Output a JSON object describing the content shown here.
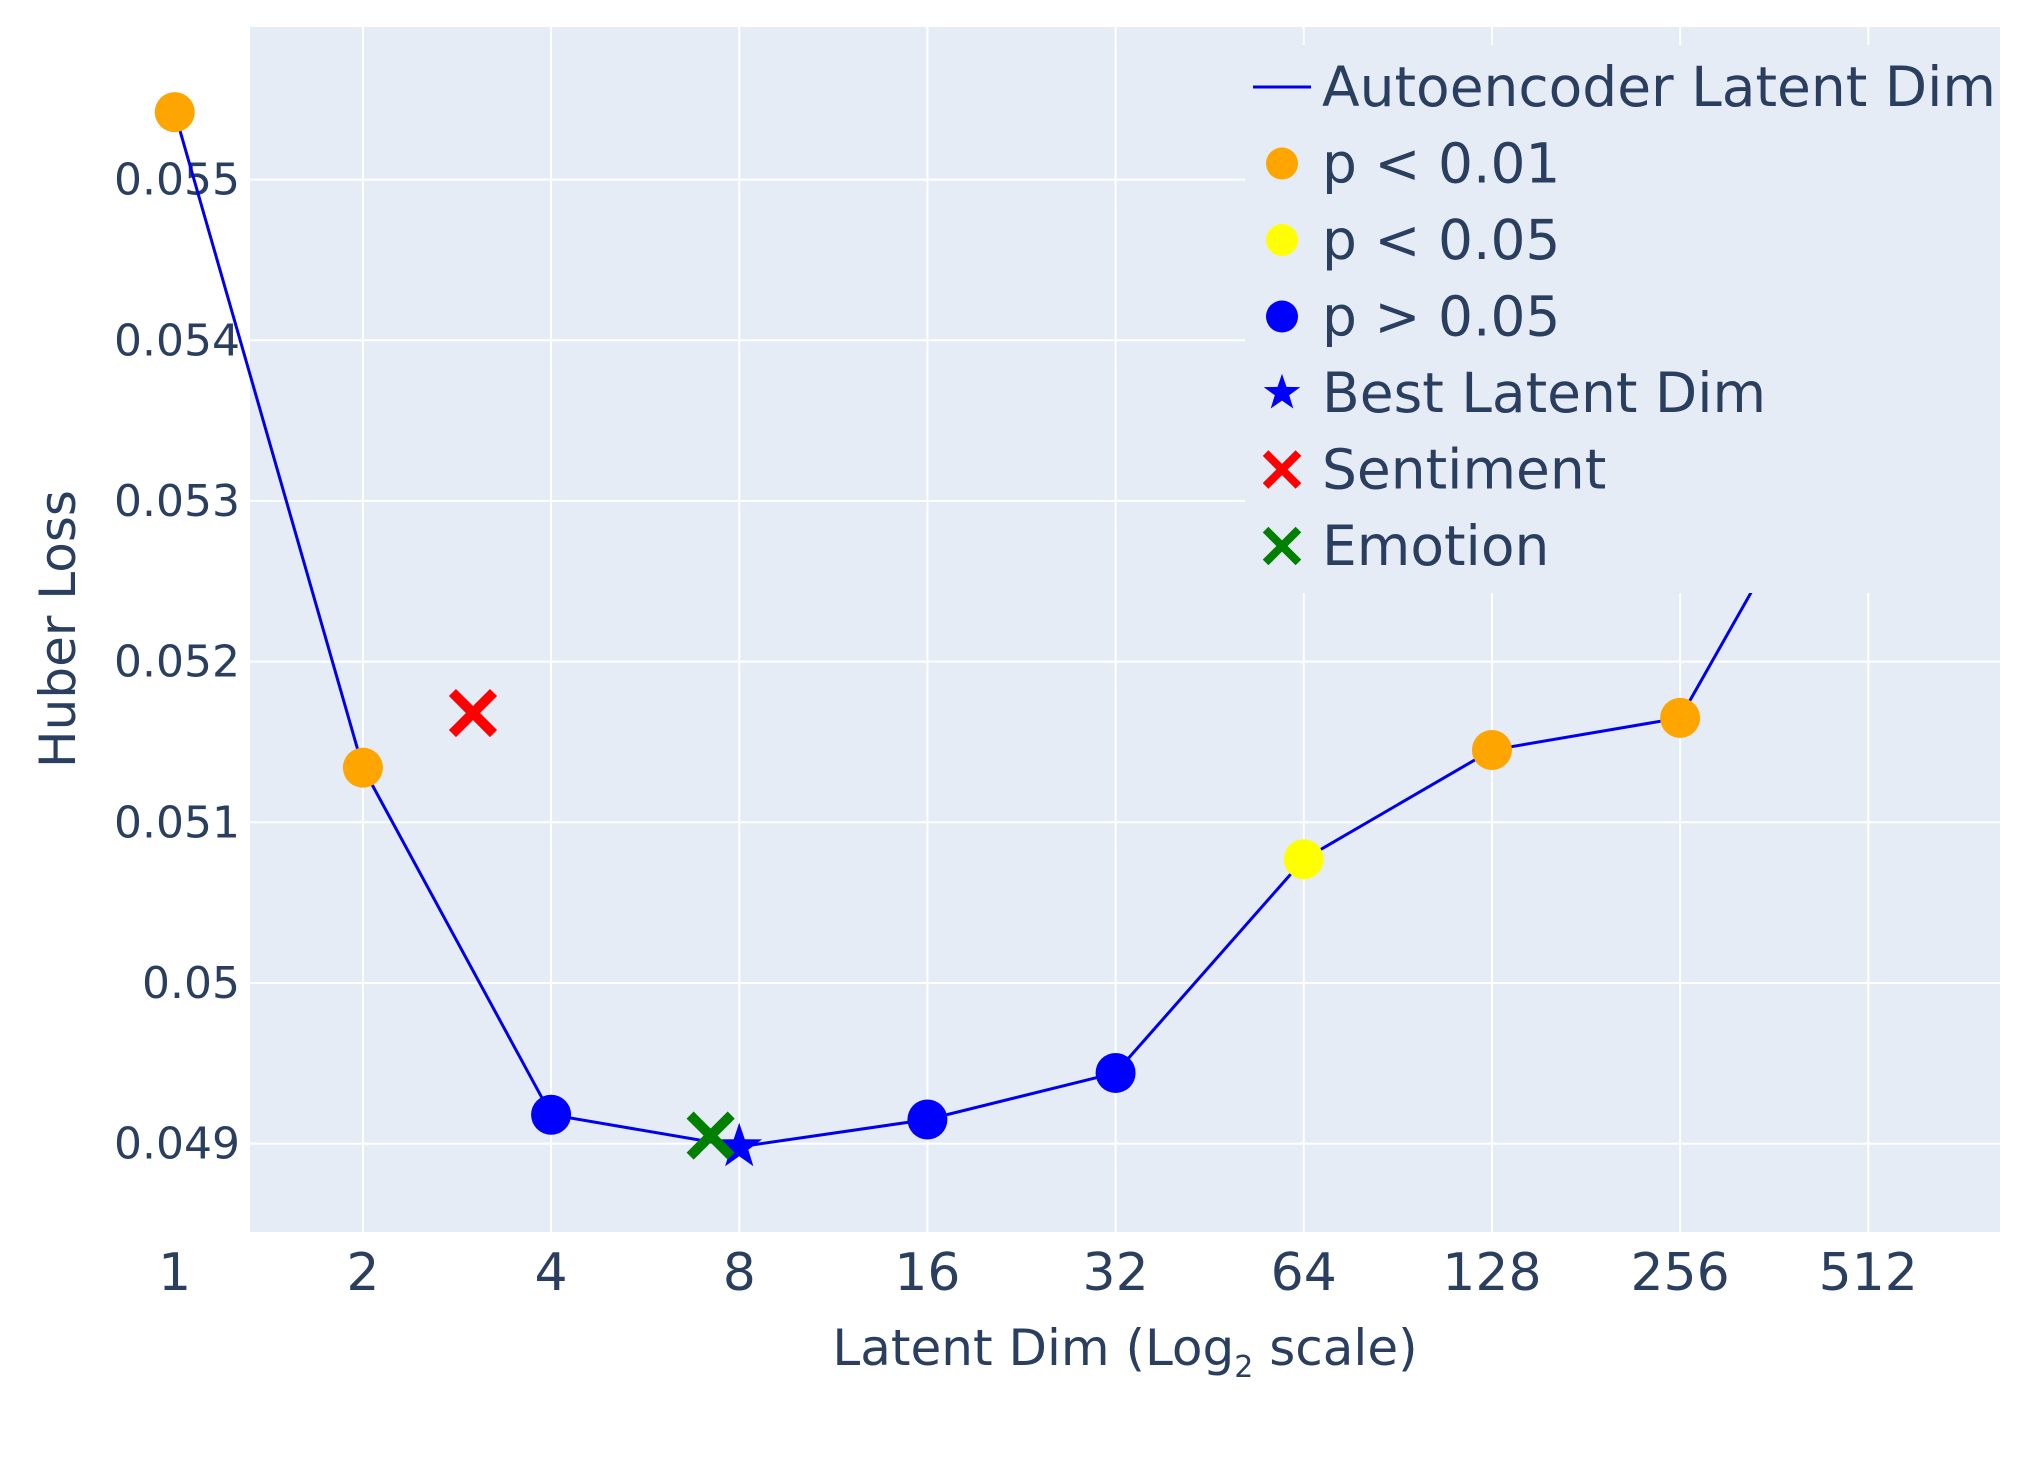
{
  "chart_data": {
    "type": "line",
    "x_axis": {
      "title": "Latent Dim (Log",
      "title_sub": "2",
      "title_end": " scale)",
      "scale": "log2",
      "tick_values": [
        1,
        2,
        4,
        8,
        16,
        32,
        64,
        128,
        256,
        512
      ],
      "tick_labels": [
        "1",
        "2",
        "4",
        "8",
        "16",
        "32",
        "64",
        "128",
        "256",
        "512"
      ]
    },
    "y_axis": {
      "title": "Huber Loss",
      "range": [
        0.04845,
        0.05595
      ],
      "tick_values": [
        0.049,
        0.05,
        0.051,
        0.052,
        0.053,
        0.054,
        0.055
      ],
      "tick_labels": [
        "0.049",
        "0.05",
        "0.051",
        "0.052",
        "0.053",
        "0.054",
        "0.055"
      ]
    },
    "grid": true,
    "legend_position": "top-right",
    "colors": {
      "plot_bg": "#e5ecf6",
      "grid": "#ffffff",
      "line": "#0000ee",
      "p001": "#ffa500",
      "p005": "#ffff00",
      "pgt005": "#0000ff",
      "sentiment": "#ff0000",
      "emotion": "#008000"
    },
    "series": [
      {
        "name": "Autoencoder Latent Dim",
        "mode": "line",
        "x": [
          1,
          2,
          4,
          8,
          16,
          32,
          64,
          128,
          256,
          512
        ],
        "y": [
          0.05542,
          0.05134,
          0.04918,
          0.04898,
          0.04915,
          0.04944,
          0.05077,
          0.05145,
          0.05165,
          0.05372
        ]
      },
      {
        "name": "p < 0.01",
        "marker": "circle",
        "color_key": "p001",
        "x": [
          1,
          2,
          128,
          256,
          512
        ],
        "y": [
          0.05542,
          0.05134,
          0.05145,
          0.05165,
          0.05372
        ]
      },
      {
        "name": "p < 0.05",
        "marker": "circle",
        "color_key": "p005",
        "x": [
          64
        ],
        "y": [
          0.05077
        ]
      },
      {
        "name": "p > 0.05",
        "marker": "circle",
        "color_key": "pgt005",
        "x": [
          4,
          16,
          32
        ],
        "y": [
          0.04918,
          0.04915,
          0.04944
        ]
      },
      {
        "name": "Best Latent Dim",
        "marker": "star",
        "color_key": "pgt005",
        "x": [
          8
        ],
        "y": [
          0.04898
        ]
      },
      {
        "name": "Sentiment",
        "marker": "x",
        "color_key": "sentiment",
        "x": [
          3
        ],
        "y": [
          0.05168
        ]
      },
      {
        "name": "Emotion",
        "marker": "x",
        "color_key": "emotion",
        "x": [
          7.2
        ],
        "y": [
          0.04905
        ]
      }
    ]
  }
}
